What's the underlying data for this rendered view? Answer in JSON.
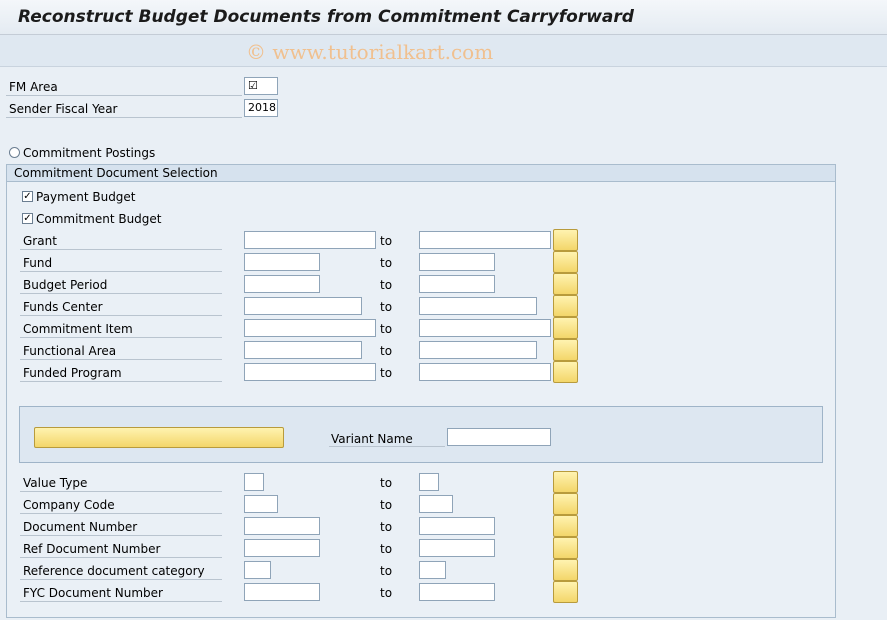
{
  "window": {
    "title": "Reconstruct Budget Documents from Commitment Carryforward",
    "watermark": "© www.tutorialkart.com"
  },
  "header_fields": {
    "fm_area": {
      "label": "FM Area",
      "value": "☑"
    },
    "sender_fiscal_year": {
      "label": "Sender Fiscal Year",
      "value": "2018"
    }
  },
  "commitment_postings_label": "Commitment Postings",
  "selection": {
    "title": "Commitment Document Selection",
    "payment_budget": {
      "label": "Payment Budget",
      "checked": true
    },
    "commitment_budget": {
      "label": "Commitment Budget",
      "checked": true
    },
    "to_label": "to",
    "ranges": [
      {
        "label": "Grant",
        "from": "",
        "to": ""
      },
      {
        "label": "Fund",
        "from": "",
        "to": ""
      },
      {
        "label": "Budget Period",
        "from": "",
        "to": ""
      },
      {
        "label": "Funds Center",
        "from": "",
        "to": ""
      },
      {
        "label": "Commitment Item",
        "from": "",
        "to": ""
      },
      {
        "label": "Functional Area",
        "from": "",
        "to": ""
      },
      {
        "label": "Funded Program",
        "from": "",
        "to": ""
      }
    ],
    "variant": {
      "button_label": "",
      "label": "Variant Name",
      "value": ""
    },
    "ranges2": [
      {
        "label": "Value Type",
        "from": "",
        "to": ""
      },
      {
        "label": "Company Code",
        "from": "",
        "to": ""
      },
      {
        "label": "Document Number",
        "from": "",
        "to": ""
      },
      {
        "label": "Ref Document Number",
        "from": "",
        "to": ""
      },
      {
        "label": "Reference document category",
        "from": "",
        "to": ""
      },
      {
        "label": "FYC Document Number",
        "from": "",
        "to": ""
      }
    ]
  }
}
